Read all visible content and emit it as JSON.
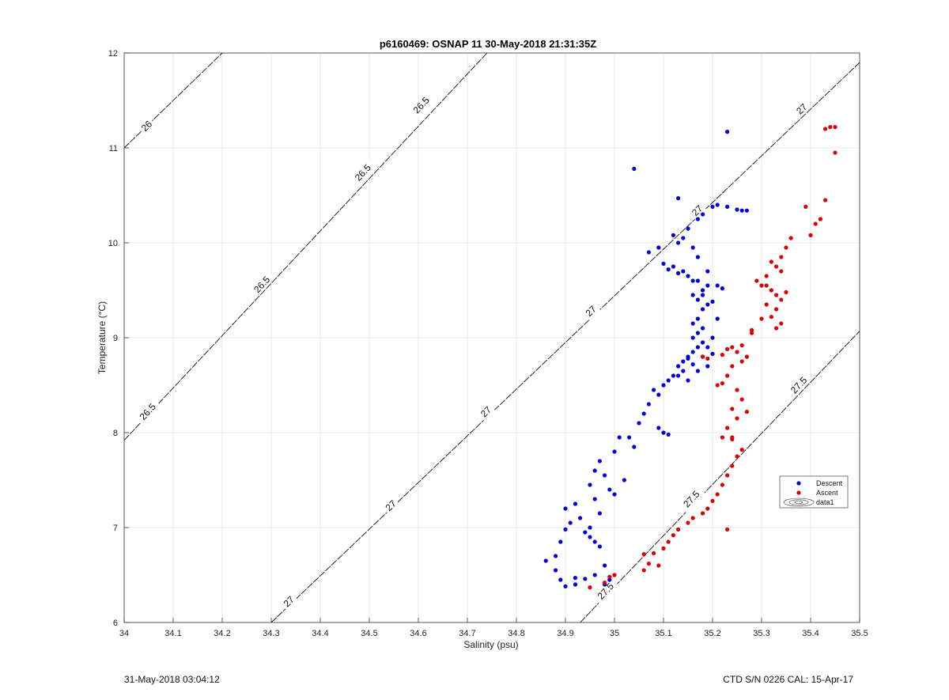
{
  "chart_data": {
    "type": "scatter",
    "title": "p6160469: OSNAP 11 30-May-2018 21:31:35Z",
    "xlabel": "Salinity (psu)",
    "ylabel": "Temperature (°C)",
    "xlim": [
      34,
      35.5
    ],
    "ylim": [
      6,
      12
    ],
    "xticks": [
      34,
      34.1,
      34.2,
      34.3,
      34.4,
      34.5,
      34.6,
      34.7,
      34.8,
      34.9,
      35,
      35.1,
      35.2,
      35.3,
      35.4,
      35.5
    ],
    "xtick_labels": [
      "34",
      "34.1",
      "34.2",
      "34.3",
      "34.4",
      "34.5",
      "34.6",
      "34.7",
      "34.8",
      "34.9",
      "35",
      "35.1",
      "35.2",
      "35.3",
      "35.4",
      "35.5"
    ],
    "yticks": [
      6,
      7,
      8,
      9,
      10,
      11,
      12
    ],
    "ytick_labels": [
      "6",
      "7",
      "8",
      "9",
      "10",
      "11",
      "12"
    ],
    "grid": true,
    "legend_position": "right",
    "density_contours": [
      {
        "label": "26",
        "points": [
          [
            34.0,
            11.0
          ],
          [
            34.2,
            12.0
          ]
        ],
        "labels_at": [
          [
            34.046,
            11.23
          ]
        ]
      },
      {
        "label": "26.5",
        "points": [
          [
            34.0,
            7.92
          ],
          [
            34.74,
            12.0
          ]
        ],
        "labels_at": [
          [
            34.048,
            8.22
          ],
          [
            34.281,
            9.56
          ],
          [
            34.487,
            10.74
          ],
          [
            34.606,
            11.45
          ]
        ]
      },
      {
        "label": "27",
        "points": [
          [
            34.3,
            6.0
          ],
          [
            35.5,
            11.9
          ]
        ],
        "labels_at": [
          [
            34.336,
            6.22
          ],
          [
            34.544,
            7.23
          ],
          [
            34.738,
            8.22
          ],
          [
            34.952,
            9.28
          ],
          [
            35.169,
            10.34
          ],
          [
            35.382,
            11.41
          ]
        ]
      },
      {
        "label": "27.5",
        "points": [
          [
            34.93,
            6.0
          ],
          [
            35.5,
            9.07
          ]
        ],
        "labels_at": [
          [
            34.982,
            6.33
          ],
          [
            35.157,
            7.3
          ],
          [
            35.376,
            8.5
          ]
        ]
      }
    ],
    "series": [
      {
        "name": "Descent",
        "color": "#0000dd",
        "points": [
          [
            34.86,
            6.65
          ],
          [
            34.88,
            6.55
          ],
          [
            34.9,
            6.38
          ],
          [
            34.89,
            6.45
          ],
          [
            34.92,
            6.4
          ],
          [
            34.88,
            6.7
          ],
          [
            34.89,
            6.85
          ],
          [
            34.9,
            6.98
          ],
          [
            34.91,
            7.05
          ],
          [
            34.9,
            7.2
          ],
          [
            34.92,
            7.25
          ],
          [
            34.93,
            7.1
          ],
          [
            34.94,
            6.95
          ],
          [
            34.95,
            6.9
          ],
          [
            34.96,
            6.85
          ],
          [
            34.95,
            7.0
          ],
          [
            34.97,
            7.15
          ],
          [
            34.96,
            7.3
          ],
          [
            34.95,
            7.45
          ],
          [
            34.96,
            7.6
          ],
          [
            34.97,
            7.7
          ],
          [
            34.98,
            7.55
          ],
          [
            34.99,
            7.4
          ],
          [
            35.0,
            7.35
          ],
          [
            35.02,
            7.5
          ],
          [
            34.97,
            6.8
          ],
          [
            34.98,
            6.6
          ],
          [
            34.96,
            6.5
          ],
          [
            34.94,
            6.46
          ],
          [
            34.92,
            6.47
          ],
          [
            34.99,
            6.45
          ],
          [
            34.98,
            6.4
          ],
          [
            35.0,
            7.8
          ],
          [
            35.01,
            7.95
          ],
          [
            35.03,
            7.95
          ],
          [
            35.04,
            7.85
          ],
          [
            35.05,
            8.1
          ],
          [
            35.06,
            8.2
          ],
          [
            35.07,
            8.3
          ],
          [
            35.08,
            8.45
          ],
          [
            35.09,
            8.4
          ],
          [
            35.1,
            8.5
          ],
          [
            35.11,
            8.55
          ],
          [
            35.12,
            8.6
          ],
          [
            35.1,
            8.0
          ],
          [
            35.09,
            8.05
          ],
          [
            35.11,
            7.98
          ],
          [
            35.13,
            8.7
          ],
          [
            35.14,
            8.75
          ],
          [
            35.15,
            8.8
          ],
          [
            35.16,
            8.85
          ],
          [
            35.17,
            8.9
          ],
          [
            35.18,
            8.95
          ],
          [
            35.16,
            9.0
          ],
          [
            35.17,
            9.05
          ],
          [
            35.18,
            9.1
          ],
          [
            35.16,
            9.15
          ],
          [
            35.17,
            9.2
          ],
          [
            35.18,
            9.3
          ],
          [
            35.19,
            9.35
          ],
          [
            35.17,
            9.4
          ],
          [
            35.16,
            9.45
          ],
          [
            35.18,
            9.5
          ],
          [
            35.19,
            9.55
          ],
          [
            35.17,
            9.6
          ],
          [
            35.15,
            9.65
          ],
          [
            35.13,
            9.68
          ],
          [
            35.11,
            9.72
          ],
          [
            35.1,
            9.78
          ],
          [
            35.12,
            9.75
          ],
          [
            35.14,
            9.7
          ],
          [
            35.16,
            9.6
          ],
          [
            35.18,
            9.45
          ],
          [
            35.2,
            9.38
          ],
          [
            35.21,
            9.55
          ],
          [
            35.19,
            9.7
          ],
          [
            35.17,
            9.85
          ],
          [
            35.16,
            9.95
          ],
          [
            35.14,
            10.05
          ],
          [
            35.13,
            10.0
          ],
          [
            35.12,
            10.08
          ],
          [
            35.15,
            10.15
          ],
          [
            35.17,
            10.25
          ],
          [
            35.18,
            10.3
          ],
          [
            35.2,
            10.38
          ],
          [
            35.21,
            10.4
          ],
          [
            35.23,
            10.38
          ],
          [
            35.25,
            10.35
          ],
          [
            35.26,
            10.34
          ],
          [
            35.27,
            10.34
          ],
          [
            35.22,
            9.52
          ],
          [
            35.21,
            9.2
          ],
          [
            35.2,
            9.0
          ],
          [
            35.19,
            8.9
          ],
          [
            35.18,
            8.8
          ],
          [
            35.19,
            8.7
          ],
          [
            35.17,
            8.65
          ],
          [
            35.15,
            8.55
          ],
          [
            35.13,
            8.6
          ],
          [
            35.07,
            9.9
          ],
          [
            35.09,
            9.95
          ],
          [
            35.13,
            10.47
          ],
          [
            35.04,
            10.78
          ],
          [
            35.23,
            11.17
          ],
          [
            35.2,
            8.83
          ],
          [
            35.15,
            8.78
          ],
          [
            35.16,
            8.72
          ],
          [
            35.14,
            8.65
          ]
        ]
      },
      {
        "name": "Ascent",
        "color": "#dd0000",
        "points": [
          [
            34.95,
            6.37
          ],
          [
            34.98,
            6.42
          ],
          [
            34.99,
            6.48
          ],
          [
            35.0,
            6.5
          ],
          [
            35.06,
            6.55
          ],
          [
            35.07,
            6.62
          ],
          [
            35.06,
            6.72
          ],
          [
            35.08,
            6.73
          ],
          [
            35.09,
            6.6
          ],
          [
            35.1,
            6.78
          ],
          [
            35.11,
            6.85
          ],
          [
            35.12,
            6.92
          ],
          [
            35.13,
            6.98
          ],
          [
            35.15,
            7.05
          ],
          [
            35.16,
            7.1
          ],
          [
            35.18,
            7.15
          ],
          [
            35.19,
            7.2
          ],
          [
            35.2,
            7.28
          ],
          [
            35.21,
            7.35
          ],
          [
            35.22,
            7.45
          ],
          [
            35.23,
            7.55
          ],
          [
            35.24,
            7.65
          ],
          [
            35.25,
            7.75
          ],
          [
            35.26,
            7.82
          ],
          [
            35.24,
            7.95
          ],
          [
            35.23,
            8.05
          ],
          [
            35.25,
            8.15
          ],
          [
            35.24,
            8.25
          ],
          [
            35.26,
            8.35
          ],
          [
            35.25,
            8.45
          ],
          [
            35.22,
            8.52
          ],
          [
            35.21,
            8.5
          ],
          [
            35.23,
            8.6
          ],
          [
            35.24,
            8.7
          ],
          [
            35.26,
            8.75
          ],
          [
            35.27,
            8.8
          ],
          [
            35.25,
            8.85
          ],
          [
            35.23,
            8.88
          ],
          [
            35.22,
            8.82
          ],
          [
            35.24,
            8.9
          ],
          [
            35.26,
            8.92
          ],
          [
            35.28,
            9.08
          ],
          [
            35.3,
            9.2
          ],
          [
            35.31,
            9.35
          ],
          [
            35.32,
            9.5
          ],
          [
            35.3,
            9.55
          ],
          [
            35.29,
            9.6
          ],
          [
            35.31,
            9.65
          ],
          [
            35.33,
            9.45
          ],
          [
            35.34,
            9.4
          ],
          [
            35.33,
            9.3
          ],
          [
            35.32,
            9.22
          ],
          [
            35.34,
            9.15
          ],
          [
            35.33,
            9.1
          ],
          [
            35.34,
            9.7
          ],
          [
            35.33,
            9.75
          ],
          [
            35.32,
            9.8
          ],
          [
            35.34,
            9.85
          ],
          [
            35.35,
            9.95
          ],
          [
            35.36,
            10.05
          ],
          [
            35.4,
            10.08
          ],
          [
            35.41,
            10.2
          ],
          [
            35.42,
            10.25
          ],
          [
            35.39,
            10.38
          ],
          [
            35.43,
            10.45
          ],
          [
            35.45,
            10.95
          ],
          [
            35.43,
            11.2
          ],
          [
            35.44,
            11.22
          ],
          [
            35.45,
            11.22
          ],
          [
            35.18,
            8.8
          ],
          [
            35.19,
            8.78
          ],
          [
            35.22,
            7.95
          ],
          [
            35.24,
            7.93
          ],
          [
            35.23,
            6.98
          ],
          [
            35.27,
            8.22
          ],
          [
            35.35,
            9.48
          ],
          [
            35.28,
            9.05
          ],
          [
            35.31,
            9.55
          ]
        ]
      }
    ],
    "legend": [
      {
        "label": "Descent"
      },
      {
        "label": "Ascent"
      },
      {
        "label": "data1"
      }
    ]
  },
  "footer": {
    "left": "31-May-2018 03:04:12",
    "right": "CTD S/N 0226  CAL: 15-Apr-17"
  }
}
